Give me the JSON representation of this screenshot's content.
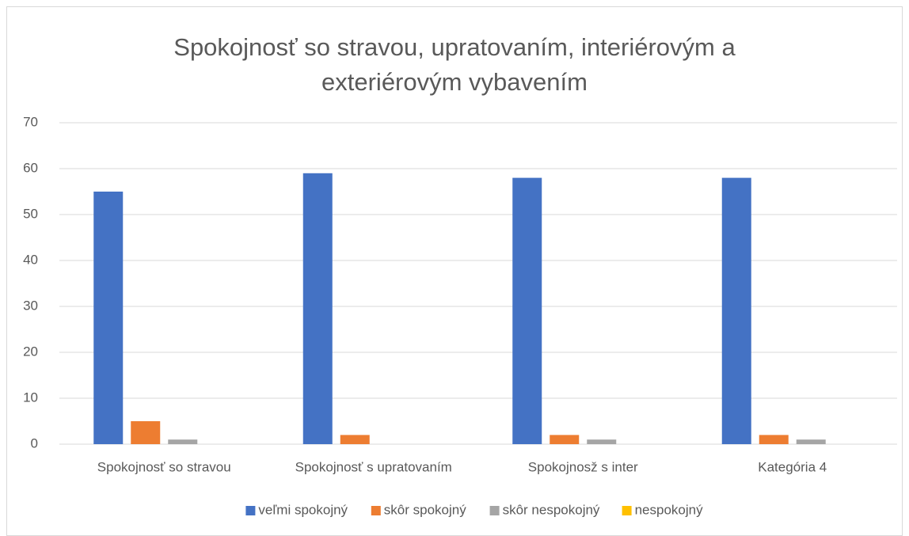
{
  "chart_data": {
    "type": "bar",
    "title": "Spokojnosť so stravou, upratovaním, interiérovým a exteriérovým vybavením",
    "categories": [
      "Spokojnosť so stravou",
      "Spokojnosť s upratovaním",
      "Spokojnosž s inter",
      "Kategória 4"
    ],
    "series": [
      {
        "name": "veľmi spokojný",
        "color": "#4472c4",
        "values": [
          55,
          59,
          58,
          58
        ]
      },
      {
        "name": "skôr spokojný",
        "color": "#ed7d31",
        "values": [
          5,
          2,
          2,
          2
        ]
      },
      {
        "name": "skôr nespokojný",
        "color": "#a5a5a5",
        "values": [
          1,
          0,
          1,
          1
        ]
      },
      {
        "name": "nespokojný",
        "color": "#ffc000",
        "values": [
          0,
          0,
          0,
          0
        ]
      }
    ],
    "ylim": [
      0,
      70
    ],
    "yticks": [
      0,
      10,
      20,
      30,
      40,
      50,
      60,
      70
    ],
    "grid": true,
    "legend": "bottom"
  }
}
